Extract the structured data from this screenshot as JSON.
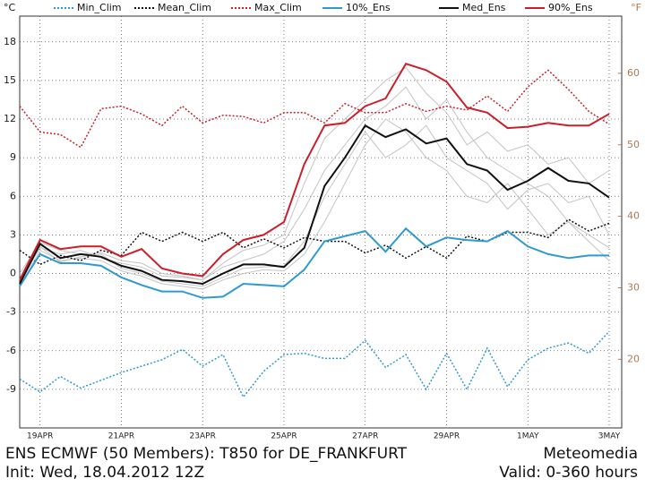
{
  "chart_data": {
    "type": "line",
    "title": "ENS ECMWF (50 Members): T850 for DE_FRANKFURT",
    "source": "Meteomedia",
    "init": "Init: Wed, 18.04.2012 12Z",
    "valid": "Valid: 0-360 hours",
    "ylabel": "°C",
    "y2label": "°F",
    "categories": [
      null,
      "19APR",
      null,
      null,
      null,
      "21APR",
      null,
      null,
      null,
      "23APR",
      null,
      null,
      null,
      "25APR",
      null,
      null,
      null,
      "27APR",
      null,
      null,
      null,
      "29APR",
      null,
      null,
      null,
      "1MAY",
      null,
      null,
      null,
      "3MAY"
    ],
    "ylim": [
      -12,
      20
    ],
    "yticks": [
      -9,
      -6,
      -3,
      0,
      3,
      6,
      9,
      12,
      15,
      18
    ],
    "y2lim": [
      10.4,
      68
    ],
    "y2ticks": [
      20,
      30,
      40,
      50,
      60
    ],
    "grid": true,
    "members": [
      [
        -0.5,
        2,
        1.5,
        1.8,
        1.2,
        0.8,
        0.5,
        -0.2,
        -0.3,
        -0.5,
        0.5,
        1,
        1.5,
        2.5,
        5,
        8,
        10,
        12,
        13,
        14.5,
        12,
        13.5,
        11,
        9,
        8,
        7,
        6,
        4,
        3,
        2
      ],
      [
        -1,
        1.8,
        1,
        1.2,
        1,
        0.2,
        -0.2,
        -0.8,
        -1,
        -1.2,
        -0.5,
        0,
        0.3,
        0.2,
        1.5,
        4,
        7,
        10,
        12,
        11,
        9,
        8,
        6,
        5.5,
        7,
        5,
        3,
        4,
        2.5,
        1
      ],
      [
        0,
        2.4,
        1.8,
        1.5,
        1.6,
        1,
        0.8,
        0,
        -0.2,
        -0.5,
        0.8,
        1.8,
        2.2,
        3,
        7,
        10.5,
        12,
        13.5,
        15,
        16,
        14,
        12.5,
        10,
        11,
        9.5,
        10,
        8.5,
        9,
        7,
        8
      ],
      [
        -0.8,
        2.1,
        0.9,
        1.3,
        1.5,
        0.4,
        0,
        -0.6,
        -0.8,
        -1,
        -0.3,
        0.4,
        0.5,
        0.6,
        2.5,
        6,
        8.5,
        11,
        9,
        10,
        11.5,
        9,
        8,
        7,
        5,
        6.5,
        7,
        5.5,
        6,
        3
      ]
    ],
    "series": [
      {
        "name": "Min_Clim",
        "color": "#2e9ad0",
        "style": "dotted",
        "values": [
          -8.2,
          -9.2,
          -8,
          -8.9,
          -8.3,
          -7.7,
          -7.2,
          -6.7,
          -5.9,
          -7.2,
          -6.3,
          -9.6,
          -7.6,
          -6.3,
          -6.2,
          -6.6,
          -6.6,
          -5.2,
          -7.3,
          -6.3,
          -9,
          -6.2,
          -9,
          -5.8,
          -8.8,
          -6.7,
          -5.8,
          -5.4,
          -6.2,
          -4.5
        ]
      },
      {
        "name": "Mean_Clim",
        "color": "#111111",
        "style": "dotted",
        "values": [
          1.8,
          0.7,
          1.4,
          1,
          1.8,
          1.4,
          3.2,
          2.5,
          3.2,
          2.5,
          3.2,
          2,
          2.7,
          2,
          2.8,
          2.5,
          2.5,
          1.6,
          2.2,
          1.2,
          2.1,
          1.2,
          2.9,
          2.5,
          3.2,
          3.2,
          2.8,
          4.2,
          3.3,
          3.9
        ]
      },
      {
        "name": "Max_Clim",
        "color": "#cc1f2a",
        "style": "dotted",
        "values": [
          13,
          11,
          10.8,
          9.8,
          12.8,
          13,
          12.4,
          11.5,
          13,
          11.7,
          12.3,
          12.2,
          11.7,
          12.5,
          12.5,
          11.7,
          13.2,
          12.5,
          12.5,
          13.2,
          12.6,
          13,
          12.7,
          13.8,
          12.6,
          14.5,
          15.8,
          14.3,
          12.6,
          11.6
        ]
      },
      {
        "name": "10%_Ens",
        "color": "#2e9ad0",
        "style": "solid",
        "values": [
          -1,
          1.5,
          0.8,
          0.8,
          0.6,
          -0.3,
          -0.9,
          -1.4,
          -1.4,
          -1.9,
          -1.8,
          -0.8,
          -0.9,
          -1,
          0.3,
          2.5,
          2.9,
          3.3,
          1.7,
          3.5,
          2.1,
          2.8,
          2.6,
          2.5,
          3.3,
          2.1,
          1.5,
          1.2,
          1.4,
          1.4
        ]
      },
      {
        "name": "Med_Ens",
        "color": "#111111",
        "style": "solid",
        "values": [
          -0.8,
          2.3,
          1.2,
          1.5,
          1.3,
          0.6,
          0.2,
          -0.5,
          -0.6,
          -0.8,
          0,
          0.7,
          0.7,
          0.5,
          2,
          6.8,
          9,
          11.5,
          10.6,
          11.2,
          10.1,
          10.5,
          8.5,
          8,
          6.5,
          7.2,
          8.2,
          7.2,
          7,
          5.9
        ]
      },
      {
        "name": "90%_Ens",
        "color": "#cc1f2a",
        "style": "solid",
        "values": [
          -0.5,
          2.6,
          1.9,
          2.1,
          2.1,
          1.3,
          1.9,
          0.4,
          0,
          -0.2,
          1.5,
          2.6,
          3,
          4,
          8.5,
          11.5,
          11.7,
          13,
          13.6,
          16.3,
          15.8,
          14.9,
          12.9,
          12.5,
          11.3,
          11.4,
          11.7,
          11.5,
          11.5,
          12.4
        ]
      }
    ]
  }
}
